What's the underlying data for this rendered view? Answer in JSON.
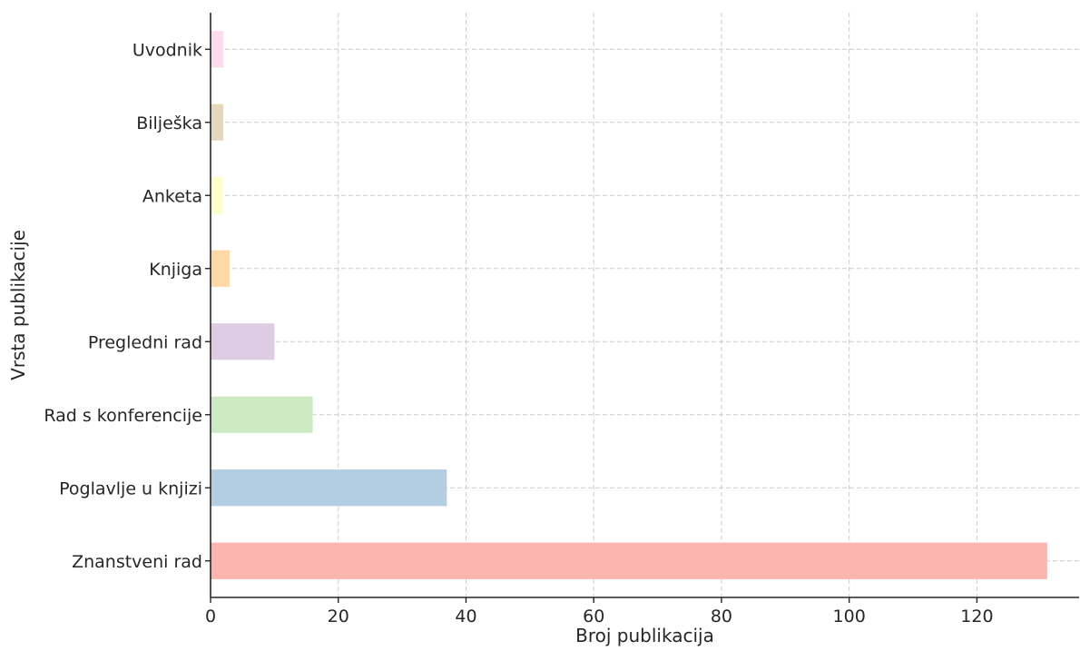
{
  "chart_data": {
    "type": "bar",
    "orientation": "horizontal",
    "title": "",
    "xlabel": "Broj publikacija",
    "ylabel": "Vrsta publikacije",
    "categories": [
      "Znanstveni rad",
      "Poglavlje u knjizi",
      "Rad s konferencije",
      "Pregledni rad",
      "Knjiga",
      "Anketa",
      "Bilješka",
      "Uvodnik"
    ],
    "values": [
      131,
      37,
      16,
      10,
      3,
      2,
      2,
      2
    ],
    "colors": [
      "#fbb4ae",
      "#b3cde3",
      "#ccebc5",
      "#decbe4",
      "#fed9a6",
      "#ffffcc",
      "#e5d8bd",
      "#fddaec"
    ],
    "xlim": [
      0,
      136
    ],
    "xticks": [
      0,
      20,
      40,
      60,
      80,
      100,
      120
    ],
    "grid": true,
    "legend": "none"
  }
}
